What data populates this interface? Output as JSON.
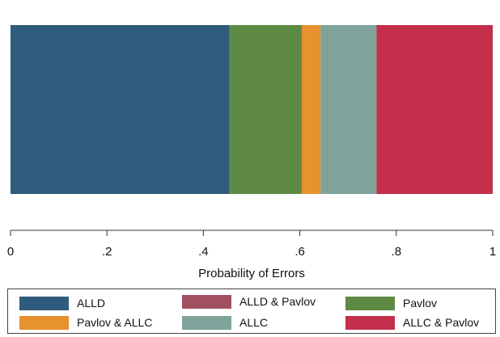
{
  "chart_data": {
    "type": "bar",
    "orientation": "horizontal",
    "stacked": true,
    "xlabel": "Probability of Errors",
    "xlim": [
      0,
      1
    ],
    "x_ticks": [
      0,
      0.2,
      0.4,
      0.6,
      0.8,
      1
    ],
    "x_tick_labels": [
      "0",
      ".2",
      ".4",
      ".6",
      ".8",
      "1"
    ],
    "grid": false,
    "legend_position": "bottom",
    "series": [
      {
        "name": "ALLD",
        "value": 0.454,
        "color": "#2f5b7c"
      },
      {
        "name": "ALLD & Pavlov",
        "value": 0.0,
        "color": "#a05060"
      },
      {
        "name": "Pavlov",
        "value": 0.15,
        "color": "#5f8a44"
      },
      {
        "name": "Pavlov & ALLC",
        "value": 0.039,
        "color": "#e8912f"
      },
      {
        "name": "ALLC",
        "value": 0.116,
        "color": "#7fa39b"
      },
      {
        "name": "ALLC & Pavlov",
        "value": 0.241,
        "color": "#c32f4b"
      }
    ]
  }
}
